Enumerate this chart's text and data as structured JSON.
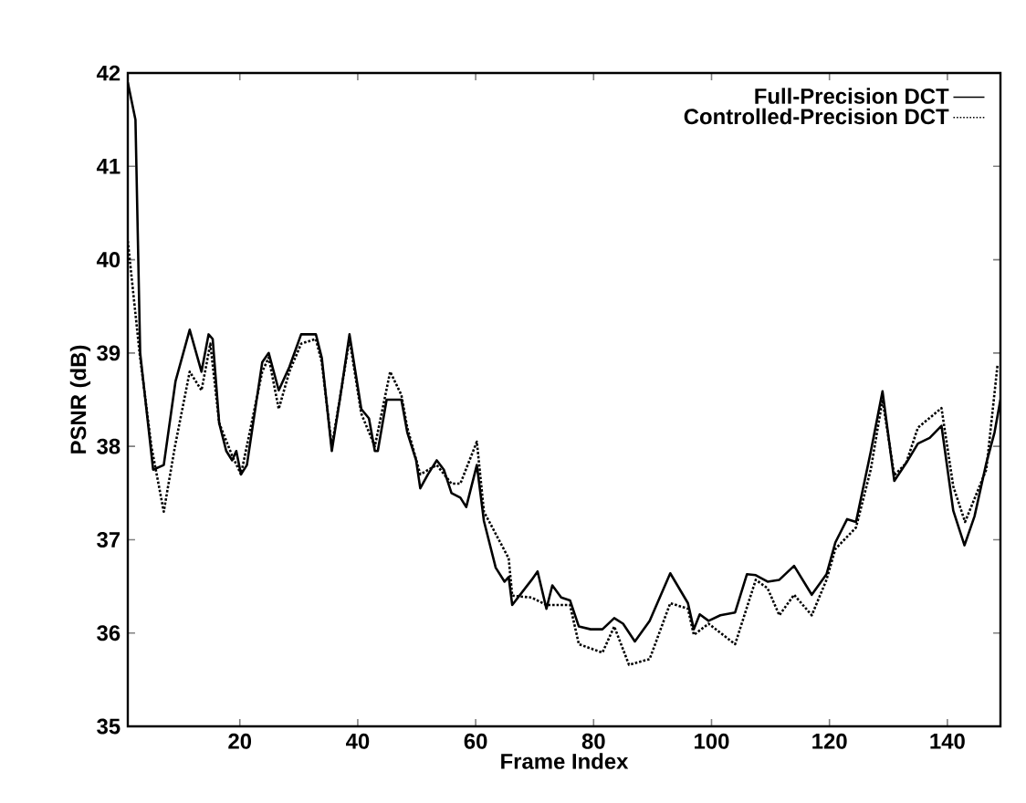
{
  "chart_data": {
    "type": "line",
    "xlabel": "Frame Index",
    "ylabel": "PSNR (dB)",
    "xlim": [
      1,
      149
    ],
    "ylim": [
      35,
      42
    ],
    "xticks": [
      20,
      40,
      60,
      80,
      100,
      120,
      140
    ],
    "yticks": [
      35,
      36,
      37,
      38,
      39,
      40,
      41,
      42
    ],
    "grid": false,
    "legend": "top right",
    "marker": "none",
    "series": [
      {
        "name": "Full-Precision DCT",
        "color": "#000000",
        "line_style": "solid",
        "x": [
          1,
          2.3,
          3.1,
          5.3,
          7.1,
          9.1,
          11.5,
          13.5,
          14.7,
          15.4,
          16.5,
          17.7,
          18.7,
          19.4,
          20.2,
          21.2,
          23.8,
          24.9,
          26.6,
          28.4,
          30.4,
          32.9,
          33.9,
          35.6,
          37.2,
          38.6,
          40.6,
          41.9,
          42.9,
          43.4,
          44.9,
          47.4,
          48.4,
          49.9,
          50.6,
          51.9,
          53.4,
          54.6,
          55.9,
          57.4,
          58.4,
          60.2,
          61.4,
          63.4,
          64.9,
          65.6,
          66.2,
          69.5,
          70.5,
          72,
          73,
          74.5,
          76,
          77.5,
          79.5,
          81.5,
          83.5,
          85,
          87,
          89.5,
          93,
          96,
          97,
          98,
          99.5,
          101.5,
          104,
          106,
          107.5,
          109.5,
          111.5,
          114,
          117,
          119.5,
          121,
          123,
          124.5,
          127,
          129,
          131,
          133,
          135,
          137,
          139,
          141,
          142.9,
          144.6,
          146.6,
          148,
          149
        ],
        "values": [
          41.9,
          41.5,
          39.0,
          37.75,
          37.8,
          38.7,
          39.25,
          38.8,
          39.2,
          39.15,
          38.25,
          37.95,
          37.85,
          37.95,
          37.7,
          37.8,
          38.9,
          39.0,
          38.6,
          38.85,
          39.2,
          39.2,
          38.95,
          37.95,
          38.6,
          39.2,
          38.4,
          38.3,
          37.95,
          37.95,
          38.5,
          38.5,
          38.15,
          37.85,
          37.55,
          37.7,
          37.85,
          37.75,
          37.5,
          37.45,
          37.35,
          37.8,
          37.2,
          36.7,
          36.55,
          36.6,
          36.3,
          36.57,
          36.66,
          36.26,
          36.51,
          36.38,
          36.35,
          36.07,
          36.04,
          36.04,
          36.16,
          36.1,
          35.91,
          36.13,
          36.64,
          36.32,
          36.04,
          36.2,
          36.13,
          36.19,
          36.22,
          36.63,
          36.62,
          36.55,
          36.57,
          36.72,
          36.41,
          36.63,
          36.97,
          37.22,
          37.19,
          37.94,
          38.59,
          37.63,
          37.82,
          38.03,
          38.09,
          38.22,
          37.31,
          36.94,
          37.25,
          37.82,
          38.15,
          38.5
        ]
      },
      {
        "name": "Controlled-Precision DCT",
        "color": "#000000",
        "line_style": "dotted",
        "x": [
          1,
          3,
          5,
          7.1,
          9,
          11.5,
          13.5,
          15,
          16.5,
          18.7,
          20.2,
          23.8,
          24.9,
          26.6,
          28.4,
          30.4,
          32.9,
          33.9,
          35.6,
          37.2,
          38.6,
          40.6,
          42.9,
          45.5,
          47.4,
          48.4,
          50.6,
          53.4,
          55.9,
          57.4,
          60.2,
          61.4,
          63.5,
          65.6,
          66.2,
          69.5,
          72,
          76,
          77.5,
          81.5,
          83.5,
          86,
          89.5,
          93,
          96,
          97,
          99.5,
          104,
          107.5,
          109.5,
          111.5,
          114,
          117,
          119.5,
          121,
          124.5,
          127,
          129,
          131,
          133,
          135,
          139,
          141,
          143,
          146.6,
          148.5
        ],
        "values": [
          40.2,
          39.0,
          38.0,
          37.3,
          38.0,
          38.8,
          38.6,
          39.1,
          38.25,
          37.9,
          37.7,
          38.8,
          38.95,
          38.4,
          38.8,
          39.1,
          39.15,
          38.9,
          38.0,
          38.6,
          39.15,
          38.35,
          38.0,
          38.8,
          38.55,
          38.2,
          37.7,
          37.8,
          37.6,
          37.6,
          38.05,
          37.3,
          37.05,
          36.8,
          36.4,
          36.38,
          36.3,
          36.3,
          35.88,
          35.79,
          36.07,
          35.66,
          35.72,
          36.32,
          36.26,
          35.98,
          36.1,
          35.88,
          36.57,
          36.48,
          36.19,
          36.41,
          36.19,
          36.57,
          36.9,
          37.13,
          37.75,
          38.5,
          37.69,
          37.82,
          38.2,
          38.41,
          37.57,
          37.19,
          37.75,
          38.87
        ]
      }
    ]
  }
}
